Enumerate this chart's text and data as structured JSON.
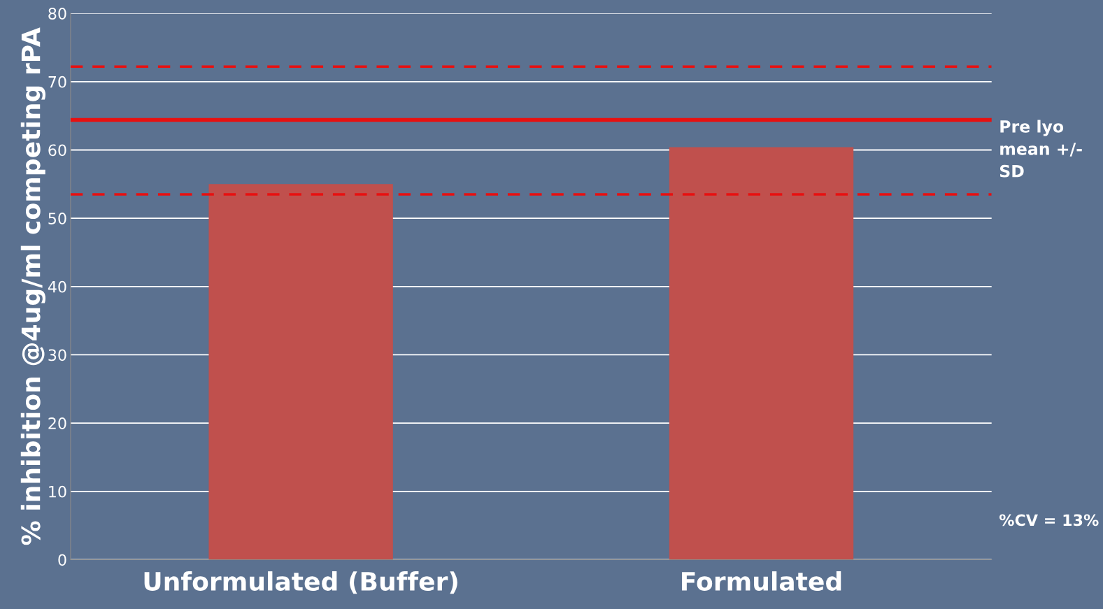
{
  "chart_data": {
    "type": "bar",
    "ylabel": "% inhibition @4ug/ml competing rPA",
    "categories": [
      "Unformulated (Buffer)",
      "Formulated"
    ],
    "values": [
      55.0,
      60.4
    ],
    "color": "#c0504d",
    "ylim": [
      0,
      80
    ],
    "yticks": [
      0,
      10,
      20,
      30,
      40,
      50,
      60,
      70,
      80
    ],
    "grid": "y",
    "ref_lines": [
      {
        "axis": "y",
        "value": 64.4,
        "label": "Pre lyo mean +/- SD",
        "color": "#e81010",
        "line_style": "solid"
      },
      {
        "axis": "y",
        "value": 72.2,
        "label": null,
        "color": "#e81010",
        "line_style": "dashed"
      },
      {
        "axis": "y",
        "value": 53.5,
        "label": null,
        "color": "#e81010",
        "line_style": "dashed"
      }
    ],
    "annotations": [
      "%CV = 13%"
    ]
  }
}
